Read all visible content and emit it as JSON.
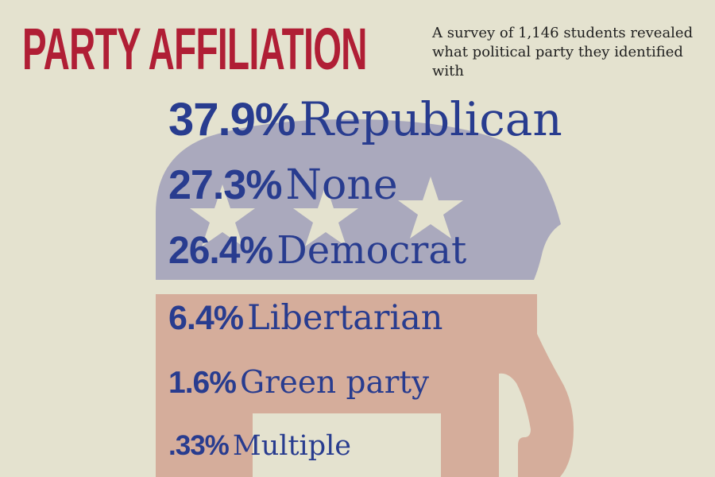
{
  "title": "PARTY AFFILIATION",
  "subtitle": "A survey of 1,146 students revealed what political party they identified with",
  "colors": {
    "background": "#e4e2cf",
    "title": "#b01e35",
    "text": "#283c8f",
    "elephant_top": "#aaa9bd",
    "elephant_bottom": "#d5ad9b",
    "stars": "#e4e2cf"
  },
  "icons": [
    "republican-elephant-icon",
    "star-icon"
  ],
  "stats": [
    {
      "pct": "37.9%",
      "label": "Republican"
    },
    {
      "pct": "27.3%",
      "label": "None"
    },
    {
      "pct": "26.4%",
      "label": "Democrat"
    },
    {
      "pct": "6.4%",
      "label": "Libertarian"
    },
    {
      "pct": "1.6%",
      "label": "Green party"
    },
    {
      "pct": ".33%",
      "label": "Multiple"
    }
  ]
}
